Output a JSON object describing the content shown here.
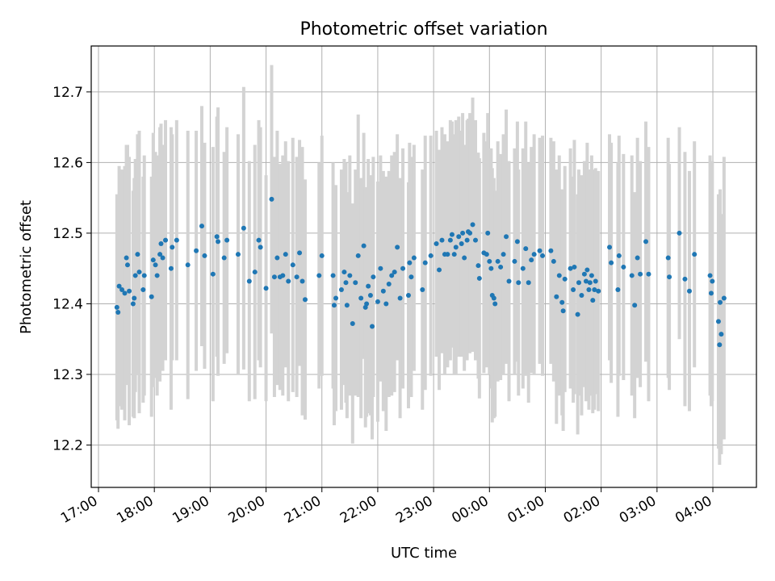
{
  "chart_data": {
    "type": "scatter",
    "title": "Photometric offset variation",
    "xlabel": "UTC time",
    "ylabel": "Photometric offset",
    "x_ticks": [
      "17:00",
      "18:00",
      "19:00",
      "20:00",
      "21:00",
      "22:00",
      "23:00",
      "00:00",
      "01:00",
      "02:00",
      "03:00",
      "04:00"
    ],
    "y_ticks": [
      "12.2",
      "12.3",
      "12.4",
      "12.5",
      "12.6",
      "12.7"
    ],
    "xlim_hours": [
      16.87,
      28.78
    ],
    "ylim": [
      12.14,
      12.765
    ],
    "grid": true,
    "colors": {
      "points": "#1f77b4",
      "errorbars": "#d3d3d3"
    },
    "series": [
      {
        "points": [
          {
            "t": 17.33,
            "y": 12.395,
            "e": 0.16
          },
          {
            "t": 17.35,
            "y": 12.388,
            "e": 0.165
          },
          {
            "t": 17.37,
            "y": 12.425,
            "e": 0.17
          },
          {
            "t": 17.42,
            "y": 12.42,
            "e": 0.17
          },
          {
            "t": 17.47,
            "y": 12.415,
            "e": 0.18
          },
          {
            "t": 17.5,
            "y": 12.465,
            "e": 0.16
          },
          {
            "t": 17.52,
            "y": 12.455,
            "e": 0.17
          },
          {
            "t": 17.55,
            "y": 12.418,
            "e": 0.19
          },
          {
            "t": 17.62,
            "y": 12.4,
            "e": 0.16
          },
          {
            "t": 17.64,
            "y": 12.408,
            "e": 0.17
          },
          {
            "t": 17.66,
            "y": 12.44,
            "e": 0.165
          },
          {
            "t": 17.7,
            "y": 12.47,
            "e": 0.17
          },
          {
            "t": 17.73,
            "y": 12.445,
            "e": 0.2
          },
          {
            "t": 17.8,
            "y": 12.42,
            "e": 0.16
          },
          {
            "t": 17.82,
            "y": 12.44,
            "e": 0.17
          },
          {
            "t": 17.95,
            "y": 12.41,
            "e": 0.17
          },
          {
            "t": 17.98,
            "y": 12.462,
            "e": 0.18
          },
          {
            "t": 18.02,
            "y": 12.455,
            "e": 0.16
          },
          {
            "t": 18.05,
            "y": 12.44,
            "e": 0.17
          },
          {
            "t": 18.1,
            "y": 12.47,
            "e": 0.18
          },
          {
            "t": 18.12,
            "y": 12.485,
            "e": 0.17
          },
          {
            "t": 18.15,
            "y": 12.465,
            "e": 0.16
          },
          {
            "t": 18.2,
            "y": 12.49,
            "e": 0.17
          },
          {
            "t": 18.3,
            "y": 12.45,
            "e": 0.2
          },
          {
            "t": 18.32,
            "y": 12.48,
            "e": 0.16
          },
          {
            "t": 18.4,
            "y": 12.49,
            "e": 0.17
          },
          {
            "t": 18.6,
            "y": 12.455,
            "e": 0.19
          },
          {
            "t": 18.75,
            "y": 12.475,
            "e": 0.17
          },
          {
            "t": 18.85,
            "y": 12.51,
            "e": 0.17
          },
          {
            "t": 18.9,
            "y": 12.468,
            "e": 0.16
          },
          {
            "t": 19.05,
            "y": 12.442,
            "e": 0.18
          },
          {
            "t": 19.12,
            "y": 12.495,
            "e": 0.17
          },
          {
            "t": 19.14,
            "y": 12.488,
            "e": 0.19
          },
          {
            "t": 19.25,
            "y": 12.465,
            "e": 0.15
          },
          {
            "t": 19.3,
            "y": 12.49,
            "e": 0.16
          },
          {
            "t": 19.5,
            "y": 12.47,
            "e": 0.17
          },
          {
            "t": 19.6,
            "y": 12.507,
            "e": 0.2
          },
          {
            "t": 19.7,
            "y": 12.432,
            "e": 0.17
          },
          {
            "t": 19.8,
            "y": 12.445,
            "e": 0.18
          },
          {
            "t": 19.87,
            "y": 12.49,
            "e": 0.17
          },
          {
            "t": 19.9,
            "y": 12.48,
            "e": 0.17
          },
          {
            "t": 20.0,
            "y": 12.422,
            "e": 0.16
          },
          {
            "t": 20.1,
            "y": 12.548,
            "e": 0.19
          },
          {
            "t": 20.15,
            "y": 12.438,
            "e": 0.17
          },
          {
            "t": 20.2,
            "y": 12.465,
            "e": 0.18
          },
          {
            "t": 20.25,
            "y": 12.438,
            "e": 0.16
          },
          {
            "t": 20.3,
            "y": 12.44,
            "e": 0.17
          },
          {
            "t": 20.35,
            "y": 12.47,
            "e": 0.16
          },
          {
            "t": 20.4,
            "y": 12.432,
            "e": 0.17
          },
          {
            "t": 20.48,
            "y": 12.455,
            "e": 0.18
          },
          {
            "t": 20.55,
            "y": 12.438,
            "e": 0.17
          },
          {
            "t": 20.6,
            "y": 12.472,
            "e": 0.16
          },
          {
            "t": 20.65,
            "y": 12.432,
            "e": 0.19
          },
          {
            "t": 20.7,
            "y": 12.406,
            "e": 0.17
          },
          {
            "t": 20.95,
            "y": 12.44,
            "e": 0.16
          },
          {
            "t": 21.0,
            "y": 12.468,
            "e": 0.17
          },
          {
            "t": 21.2,
            "y": 12.44,
            "e": 0.16
          },
          {
            "t": 21.22,
            "y": 12.398,
            "e": 0.17
          },
          {
            "t": 21.25,
            "y": 12.408,
            "e": 0.16
          },
          {
            "t": 21.35,
            "y": 12.42,
            "e": 0.17
          },
          {
            "t": 21.4,
            "y": 12.445,
            "e": 0.16
          },
          {
            "t": 21.43,
            "y": 12.43,
            "e": 0.17
          },
          {
            "t": 21.45,
            "y": 12.398,
            "e": 0.16
          },
          {
            "t": 21.5,
            "y": 12.44,
            "e": 0.17
          },
          {
            "t": 21.55,
            "y": 12.372,
            "e": 0.17
          },
          {
            "t": 21.6,
            "y": 12.43,
            "e": 0.16
          },
          {
            "t": 21.65,
            "y": 12.468,
            "e": 0.2
          },
          {
            "t": 21.7,
            "y": 12.408,
            "e": 0.17
          },
          {
            "t": 21.75,
            "y": 12.482,
            "e": 0.16
          },
          {
            "t": 21.78,
            "y": 12.395,
            "e": 0.17
          },
          {
            "t": 21.8,
            "y": 12.4,
            "e": 0.16
          },
          {
            "t": 21.83,
            "y": 12.425,
            "e": 0.18
          },
          {
            "t": 21.87,
            "y": 12.412,
            "e": 0.17
          },
          {
            "t": 21.9,
            "y": 12.368,
            "e": 0.16
          },
          {
            "t": 21.92,
            "y": 12.438,
            "e": 0.17
          },
          {
            "t": 22.0,
            "y": 12.403,
            "e": 0.17
          },
          {
            "t": 22.05,
            "y": 12.45,
            "e": 0.16
          },
          {
            "t": 22.1,
            "y": 12.418,
            "e": 0.17
          },
          {
            "t": 22.15,
            "y": 12.4,
            "e": 0.18
          },
          {
            "t": 22.2,
            "y": 12.428,
            "e": 0.16
          },
          {
            "t": 22.25,
            "y": 12.44,
            "e": 0.17
          },
          {
            "t": 22.3,
            "y": 12.445,
            "e": 0.17
          },
          {
            "t": 22.35,
            "y": 12.48,
            "e": 0.16
          },
          {
            "t": 22.4,
            "y": 12.408,
            "e": 0.17
          },
          {
            "t": 22.45,
            "y": 12.45,
            "e": 0.17
          },
          {
            "t": 22.55,
            "y": 12.412,
            "e": 0.16
          },
          {
            "t": 22.57,
            "y": 12.458,
            "e": 0.17
          },
          {
            "t": 22.6,
            "y": 12.438,
            "e": 0.17
          },
          {
            "t": 22.65,
            "y": 12.465,
            "e": 0.16
          },
          {
            "t": 22.8,
            "y": 12.42,
            "e": 0.17
          },
          {
            "t": 22.85,
            "y": 12.458,
            "e": 0.18
          },
          {
            "t": 22.95,
            "y": 12.468,
            "e": 0.17
          },
          {
            "t": 23.05,
            "y": 12.485,
            "e": 0.16
          },
          {
            "t": 23.1,
            "y": 12.448,
            "e": 0.17
          },
          {
            "t": 23.15,
            "y": 12.49,
            "e": 0.16
          },
          {
            "t": 23.2,
            "y": 12.47,
            "e": 0.17
          },
          {
            "t": 23.25,
            "y": 12.47,
            "e": 0.16
          },
          {
            "t": 23.3,
            "y": 12.49,
            "e": 0.17
          },
          {
            "t": 23.33,
            "y": 12.498,
            "e": 0.16
          },
          {
            "t": 23.37,
            "y": 12.47,
            "e": 0.17
          },
          {
            "t": 23.4,
            "y": 12.48,
            "e": 0.18
          },
          {
            "t": 23.45,
            "y": 12.495,
            "e": 0.17
          },
          {
            "t": 23.5,
            "y": 12.485,
            "e": 0.16
          },
          {
            "t": 23.52,
            "y": 12.5,
            "e": 0.17
          },
          {
            "t": 23.55,
            "y": 12.465,
            "e": 0.16
          },
          {
            "t": 23.6,
            "y": 12.49,
            "e": 0.17
          },
          {
            "t": 23.62,
            "y": 12.502,
            "e": 0.16
          },
          {
            "t": 23.65,
            "y": 12.5,
            "e": 0.17
          },
          {
            "t": 23.7,
            "y": 12.512,
            "e": 0.18
          },
          {
            "t": 23.75,
            "y": 12.49,
            "e": 0.17
          },
          {
            "t": 23.8,
            "y": 12.454,
            "e": 0.16
          },
          {
            "t": 23.82,
            "y": 12.436,
            "e": 0.17
          },
          {
            "t": 23.9,
            "y": 12.472,
            "e": 0.17
          },
          {
            "t": 23.95,
            "y": 12.47,
            "e": 0.16
          },
          {
            "t": 23.97,
            "y": 12.5,
            "e": 0.17
          },
          {
            "t": 24.0,
            "y": 12.46,
            "e": 0.16
          },
          {
            "t": 24.03,
            "y": 12.45,
            "e": 0.17
          },
          {
            "t": 24.05,
            "y": 12.412,
            "e": 0.18
          },
          {
            "t": 24.08,
            "y": 12.408,
            "e": 0.17
          },
          {
            "t": 24.1,
            "y": 12.4,
            "e": 0.16
          },
          {
            "t": 24.15,
            "y": 12.46,
            "e": 0.17
          },
          {
            "t": 24.2,
            "y": 12.452,
            "e": 0.16
          },
          {
            "t": 24.25,
            "y": 12.47,
            "e": 0.17
          },
          {
            "t": 24.3,
            "y": 12.495,
            "e": 0.18
          },
          {
            "t": 24.35,
            "y": 12.432,
            "e": 0.17
          },
          {
            "t": 24.45,
            "y": 12.46,
            "e": 0.16
          },
          {
            "t": 24.5,
            "y": 12.488,
            "e": 0.17
          },
          {
            "t": 24.52,
            "y": 12.43,
            "e": 0.16
          },
          {
            "t": 24.6,
            "y": 12.45,
            "e": 0.17
          },
          {
            "t": 24.65,
            "y": 12.478,
            "e": 0.18
          },
          {
            "t": 24.7,
            "y": 12.43,
            "e": 0.17
          },
          {
            "t": 24.75,
            "y": 12.462,
            "e": 0.16
          },
          {
            "t": 24.8,
            "y": 12.47,
            "e": 0.17
          },
          {
            "t": 24.9,
            "y": 12.475,
            "e": 0.16
          },
          {
            "t": 24.95,
            "y": 12.468,
            "e": 0.17
          },
          {
            "t": 25.1,
            "y": 12.475,
            "e": 0.16
          },
          {
            "t": 25.15,
            "y": 12.46,
            "e": 0.17
          },
          {
            "t": 25.2,
            "y": 12.41,
            "e": 0.18
          },
          {
            "t": 25.25,
            "y": 12.44,
            "e": 0.17
          },
          {
            "t": 25.3,
            "y": 12.402,
            "e": 0.16
          },
          {
            "t": 25.32,
            "y": 12.39,
            "e": 0.17
          },
          {
            "t": 25.35,
            "y": 12.435,
            "e": 0.16
          },
          {
            "t": 25.45,
            "y": 12.45,
            "e": 0.17
          },
          {
            "t": 25.5,
            "y": 12.42,
            "e": 0.16
          },
          {
            "t": 25.52,
            "y": 12.452,
            "e": 0.18
          },
          {
            "t": 25.58,
            "y": 12.385,
            "e": 0.17
          },
          {
            "t": 25.6,
            "y": 12.43,
            "e": 0.16
          },
          {
            "t": 25.65,
            "y": 12.412,
            "e": 0.17
          },
          {
            "t": 25.7,
            "y": 12.442,
            "e": 0.16
          },
          {
            "t": 25.73,
            "y": 12.432,
            "e": 0.17
          },
          {
            "t": 25.75,
            "y": 12.448,
            "e": 0.18
          },
          {
            "t": 25.78,
            "y": 12.42,
            "e": 0.17
          },
          {
            "t": 25.8,
            "y": 12.43,
            "e": 0.16
          },
          {
            "t": 25.83,
            "y": 12.44,
            "e": 0.17
          },
          {
            "t": 25.85,
            "y": 12.405,
            "e": 0.16
          },
          {
            "t": 25.88,
            "y": 12.42,
            "e": 0.17
          },
          {
            "t": 25.9,
            "y": 12.432,
            "e": 0.16
          },
          {
            "t": 25.95,
            "y": 12.418,
            "e": 0.17
          },
          {
            "t": 26.15,
            "y": 12.48,
            "e": 0.16
          },
          {
            "t": 26.18,
            "y": 12.458,
            "e": 0.17
          },
          {
            "t": 26.3,
            "y": 12.42,
            "e": 0.18
          },
          {
            "t": 26.32,
            "y": 12.468,
            "e": 0.17
          },
          {
            "t": 26.4,
            "y": 12.452,
            "e": 0.16
          },
          {
            "t": 26.55,
            "y": 12.44,
            "e": 0.17
          },
          {
            "t": 26.6,
            "y": 12.398,
            "e": 0.16
          },
          {
            "t": 26.65,
            "y": 12.465,
            "e": 0.17
          },
          {
            "t": 26.7,
            "y": 12.442,
            "e": 0.16
          },
          {
            "t": 26.8,
            "y": 12.488,
            "e": 0.17
          },
          {
            "t": 26.85,
            "y": 12.442,
            "e": 0.18
          },
          {
            "t": 27.2,
            "y": 12.465,
            "e": 0.17
          },
          {
            "t": 27.22,
            "y": 12.438,
            "e": 0.16
          },
          {
            "t": 27.4,
            "y": 12.5,
            "e": 0.15
          },
          {
            "t": 27.5,
            "y": 12.435,
            "e": 0.18
          },
          {
            "t": 27.58,
            "y": 12.418,
            "e": 0.17
          },
          {
            "t": 27.67,
            "y": 12.47,
            "e": 0.16
          },
          {
            "t": 27.95,
            "y": 12.44,
            "e": 0.17
          },
          {
            "t": 27.97,
            "y": 12.415,
            "e": 0.16
          },
          {
            "t": 27.99,
            "y": 12.432,
            "e": 0.17
          },
          {
            "t": 28.1,
            "y": 12.375,
            "e": 0.18
          },
          {
            "t": 28.12,
            "y": 12.342,
            "e": 0.17
          },
          {
            "t": 28.13,
            "y": 12.402,
            "e": 0.16
          },
          {
            "t": 28.15,
            "y": 12.357,
            "e": 0.17
          },
          {
            "t": 28.2,
            "y": 12.408,
            "e": 0.2
          }
        ]
      }
    ]
  }
}
